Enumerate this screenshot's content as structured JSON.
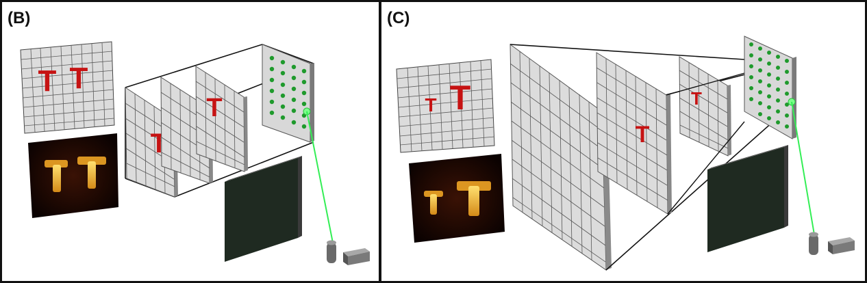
{
  "panels": [
    {
      "label": "(B)",
      "plane_letters": [
        "T",
        "T"
      ],
      "grid_letters": [
        "T",
        "T"
      ]
    },
    {
      "label": "(C)",
      "plane_letters": [
        "T",
        "T"
      ],
      "grid_letters": [
        "T",
        "T"
      ]
    }
  ],
  "colors": {
    "letter": "#c61313",
    "dot": "#1f9a2c",
    "laser": "#33ee55",
    "grid_fill": "#dedede",
    "grid_line": "#555555",
    "detector": "#202c22"
  }
}
